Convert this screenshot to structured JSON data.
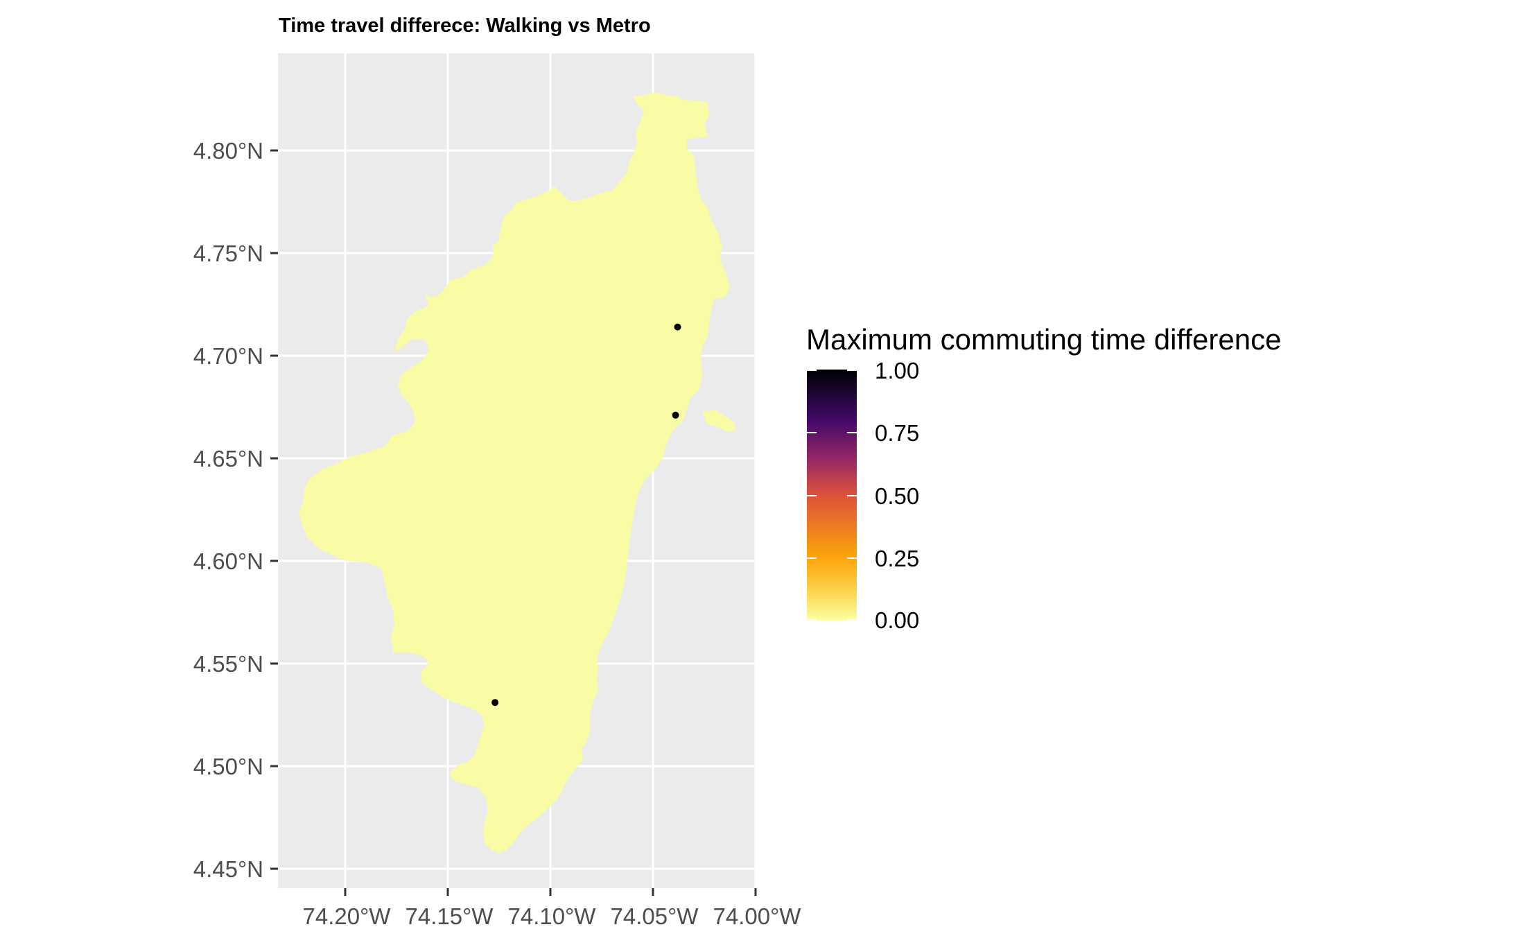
{
  "title": "Time travel differece: Walking vs Metro",
  "axes": {
    "y_ticks": [
      "4.80°N",
      "4.75°N",
      "4.70°N",
      "4.65°N",
      "4.60°N",
      "4.55°N",
      "4.50°N",
      "4.45°N"
    ],
    "x_ticks": [
      "74.20°W",
      "74.15°W",
      "74.10°W",
      "74.05°W",
      "74.00°W"
    ]
  },
  "legend": {
    "title": "Maximum commuting time difference",
    "labels": [
      "1.00",
      "0.75",
      "0.50",
      "0.25",
      "0.00"
    ],
    "colors": [
      "#000004",
      "#420a68",
      "#932667",
      "#dd513a",
      "#fca50a",
      "#fcffa4"
    ]
  },
  "map": {
    "region_fill": "#f9fca4",
    "panel_bg": "#ebebeb",
    "grid_color": "#ffffff",
    "points": [
      {
        "lon": -74.038,
        "lat": 4.714
      },
      {
        "lon": -74.039,
        "lat": 4.671
      },
      {
        "lon": -74.127,
        "lat": 4.531
      }
    ]
  }
}
